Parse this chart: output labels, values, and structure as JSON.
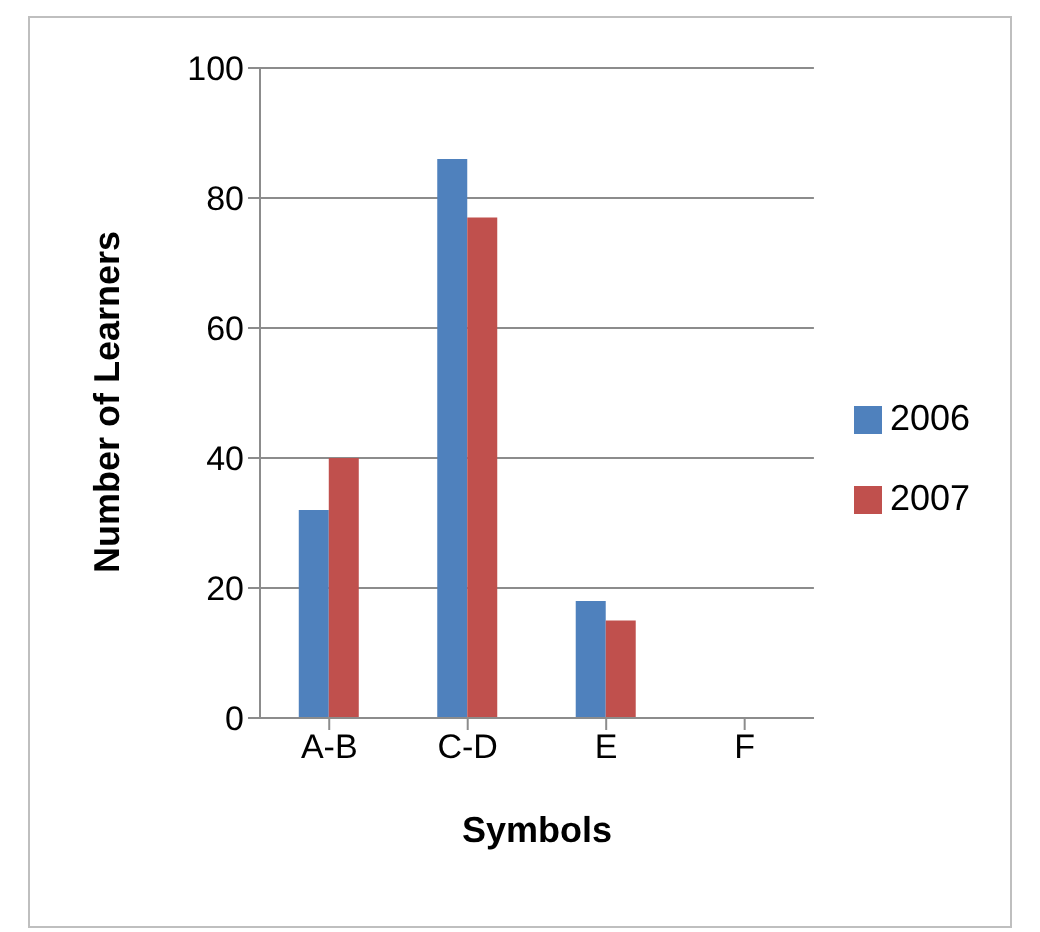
{
  "chart_data": {
    "type": "bar",
    "xlabel": "Symbols",
    "ylabel": "Number of Learners",
    "categories": [
      "A-B",
      "C-D",
      "E",
      "F"
    ],
    "series": [
      {
        "name": "2006",
        "color": "#4f81bd",
        "values": [
          32,
          86,
          18,
          0
        ]
      },
      {
        "name": "2007",
        "color": "#c0504d",
        "values": [
          40,
          77,
          15,
          0
        ]
      }
    ],
    "ylim": [
      0,
      100
    ],
    "yticks": [
      0,
      20,
      40,
      60,
      80,
      100
    ],
    "grid": "y",
    "legend": "right"
  }
}
